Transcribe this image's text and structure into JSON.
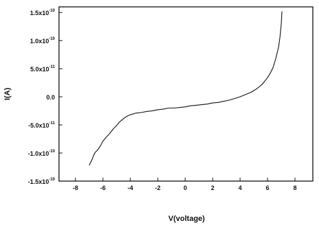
{
  "chart_data": {
    "type": "line",
    "xlabel": "V(voltage)",
    "ylabel": "I(A)",
    "xlim": [
      -9.2,
      9.3
    ],
    "ylim": [
      -1.5e-10,
      1.6e-10
    ],
    "grid": false,
    "x_ticks": [
      {
        "value": -8,
        "label": "-8"
      },
      {
        "value": -6,
        "label": "-6"
      },
      {
        "value": -4,
        "label": "-4"
      },
      {
        "value": -2,
        "label": "-2"
      },
      {
        "value": 0,
        "label": "0"
      },
      {
        "value": 2,
        "label": "2"
      },
      {
        "value": 4,
        "label": "4"
      },
      {
        "value": 6,
        "label": "6"
      },
      {
        "value": 8,
        "label": "8"
      }
    ],
    "y_ticks": [
      {
        "value": 1.5e-10,
        "mantissa": "1.5x10",
        "exp": "-10"
      },
      {
        "value": 1e-10,
        "mantissa": "1.0x10",
        "exp": "-10"
      },
      {
        "value": 5e-11,
        "mantissa": "5.0x10",
        "exp": "-11"
      },
      {
        "value": 0,
        "mantissa": "0.0",
        "exp": ""
      },
      {
        "value": -5e-11,
        "mantissa": "-5.0x10",
        "exp": "-11"
      },
      {
        "value": -1e-10,
        "mantissa": "-1.0x10",
        "exp": "-10"
      },
      {
        "value": -1.5e-10,
        "mantissa": "-1.5x10",
        "exp": "-10"
      }
    ],
    "series": [
      {
        "color": "#111111",
        "x": [
          -7.0,
          -6.8,
          -6.6,
          -6.4,
          -6.2,
          -6.0,
          -5.8,
          -5.6,
          -5.4,
          -5.2,
          -5.0,
          -4.8,
          -4.6,
          -4.4,
          -4.2,
          -4.0,
          -3.6,
          -3.2,
          -2.8,
          -2.4,
          -2.0,
          -1.6,
          -1.2,
          -0.8,
          -0.4,
          0.0,
          0.4,
          0.8,
          1.2,
          1.6,
          2.0,
          2.4,
          2.8,
          3.2,
          3.6,
          4.0,
          4.4,
          4.8,
          5.2,
          5.6,
          6.0,
          6.2,
          6.4,
          6.6,
          6.8,
          6.9,
          7.0,
          7.05
        ],
        "y": [
          -1.22e-10,
          -1.12e-10,
          -1e-10,
          -9.5e-11,
          -8.8e-11,
          -7.9e-11,
          -7.3e-11,
          -6.8e-11,
          -6.2e-11,
          -5.6e-11,
          -5.1e-11,
          -4.5e-11,
          -4.1e-11,
          -3.7e-11,
          -3.4e-11,
          -3.2e-11,
          -2.9e-11,
          -2.8e-11,
          -2.6e-11,
          -2.5e-11,
          -2.3e-11,
          -2.2e-11,
          -2e-11,
          -2e-11,
          -1.9e-11,
          -1.8e-11,
          -1.6e-11,
          -1.5e-11,
          -1.4e-11,
          -1.3e-11,
          -1.1e-11,
          -1e-11,
          -8e-12,
          -6e-12,
          -3e-12,
          0.0,
          4e-12,
          8e-12,
          1.4e-11,
          2.2e-11,
          3.4e-11,
          4.2e-11,
          5.2e-11,
          6.8e-11,
          8.8e-11,
          1.05e-10,
          1.3e-10,
          1.52e-10
        ]
      }
    ],
    "annotations": []
  }
}
